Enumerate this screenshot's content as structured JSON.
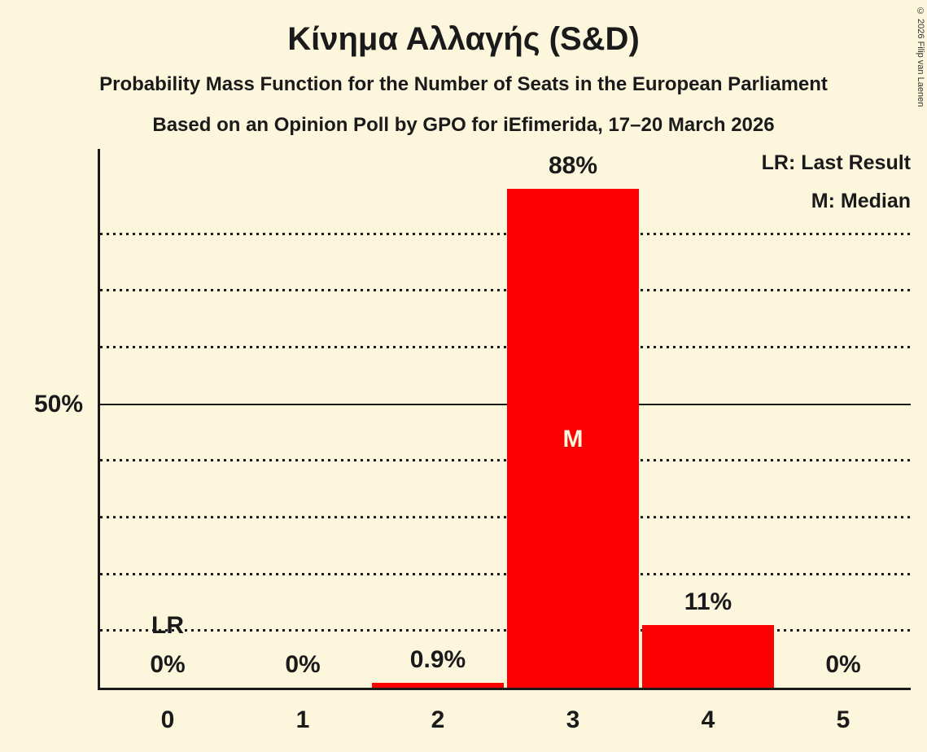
{
  "header": {
    "title": "Κίνημα Αλλαγής (S&D)",
    "subtitle1": "Probability Mass Function for the Number of Seats in the European Parliament",
    "subtitle2": "Based on an Opinion Poll by GPO for iEfimerida, 17–20 March 2026"
  },
  "copyright": "© 2026 Filip van Laenen",
  "legend": {
    "lr": "LR: Last Result",
    "m": "M: Median"
  },
  "chart_data": {
    "type": "bar",
    "title": "Κίνημα Αλλαγής (S&D)",
    "categories": [
      "0",
      "1",
      "2",
      "3",
      "4",
      "5"
    ],
    "values": [
      0,
      0,
      0.9,
      88,
      11,
      0
    ],
    "value_labels": [
      "0%",
      "0%",
      "0.9%",
      "88%",
      "11%",
      "0%"
    ],
    "xlabel": "",
    "ylabel": "",
    "y_axis_label": "50%",
    "ylim": [
      0,
      95
    ],
    "gridlines_pct": [
      10,
      20,
      30,
      40,
      60,
      70,
      80
    ],
    "solid_line_pct": 50,
    "median_index": 3,
    "median_marker": "M",
    "last_result_index": 0,
    "last_result_marker": "LR",
    "legend_position": "top-right",
    "grid": true,
    "bar_color": "#fa0000",
    "background_color": "#fcf6dd",
    "median_text_color": "#fcf6dd",
    "text_color": "#1a1a1a"
  }
}
